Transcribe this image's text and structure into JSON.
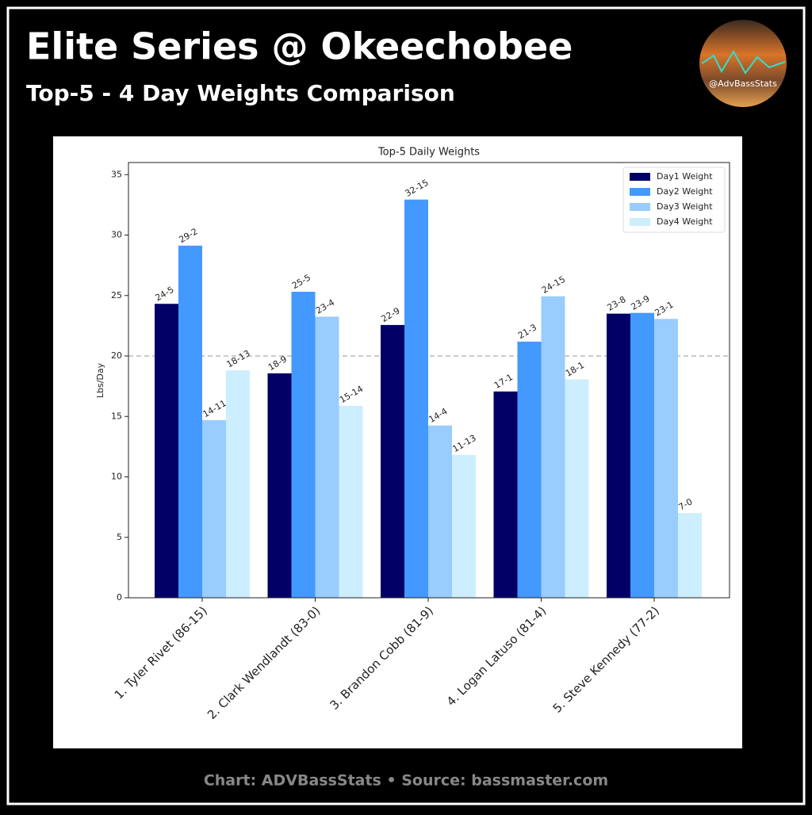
{
  "header": {
    "title": "Elite Series @ Okeechobee",
    "subtitle": "Top-5 - 4 Day Weights Comparison",
    "logo_text": "@AdvBassStats"
  },
  "footer": "Chart: ADVBassStats  •  Source: bassmaster.com",
  "chart_data": {
    "type": "bar",
    "title": "Top-5 Daily Weights",
    "y_label": "Lbs/Day",
    "categories": [
      "1. Tyler Rivet (86-15)",
      "2. Clark Wendlandt (83-0)",
      "3. Brandon Cobb (81-9)",
      "4. Logan Latuso (81-4)",
      "5. Steve Kennedy (77-2)"
    ],
    "series": [
      {
        "name": "Day1 Weight",
        "color": "#000066",
        "values": [
          24.3125,
          18.5625,
          22.5625,
          17.0625,
          23.5
        ],
        "value_labels": [
          "24-5",
          "18-9",
          "22-9",
          "17-1",
          "23-8"
        ]
      },
      {
        "name": "Day2 Weight",
        "color": "#4499ff",
        "values": [
          29.125,
          25.3125,
          32.9375,
          21.1875,
          23.5625
        ],
        "value_labels": [
          "29-2",
          "25-5",
          "32-15",
          "21-3",
          "23-9"
        ]
      },
      {
        "name": "Day3 Weight",
        "color": "#99ccff",
        "values": [
          14.6875,
          23.25,
          14.25,
          24.9375,
          23.0625
        ],
        "value_labels": [
          "14-11",
          "23-4",
          "14-4",
          "24-15",
          "23-1"
        ]
      },
      {
        "name": "Day4 Weight",
        "color": "#cceeff",
        "values": [
          18.8125,
          15.875,
          11.8125,
          18.0625,
          7
        ],
        "value_labels": [
          "18-13",
          "15-14",
          "11-13",
          "18-1",
          "7-0"
        ]
      }
    ],
    "ylim": [
      0,
      36
    ],
    "yticks": [
      0,
      5,
      10,
      15,
      20,
      25,
      30,
      35
    ],
    "reference_line": 20,
    "legend": "upper right"
  }
}
